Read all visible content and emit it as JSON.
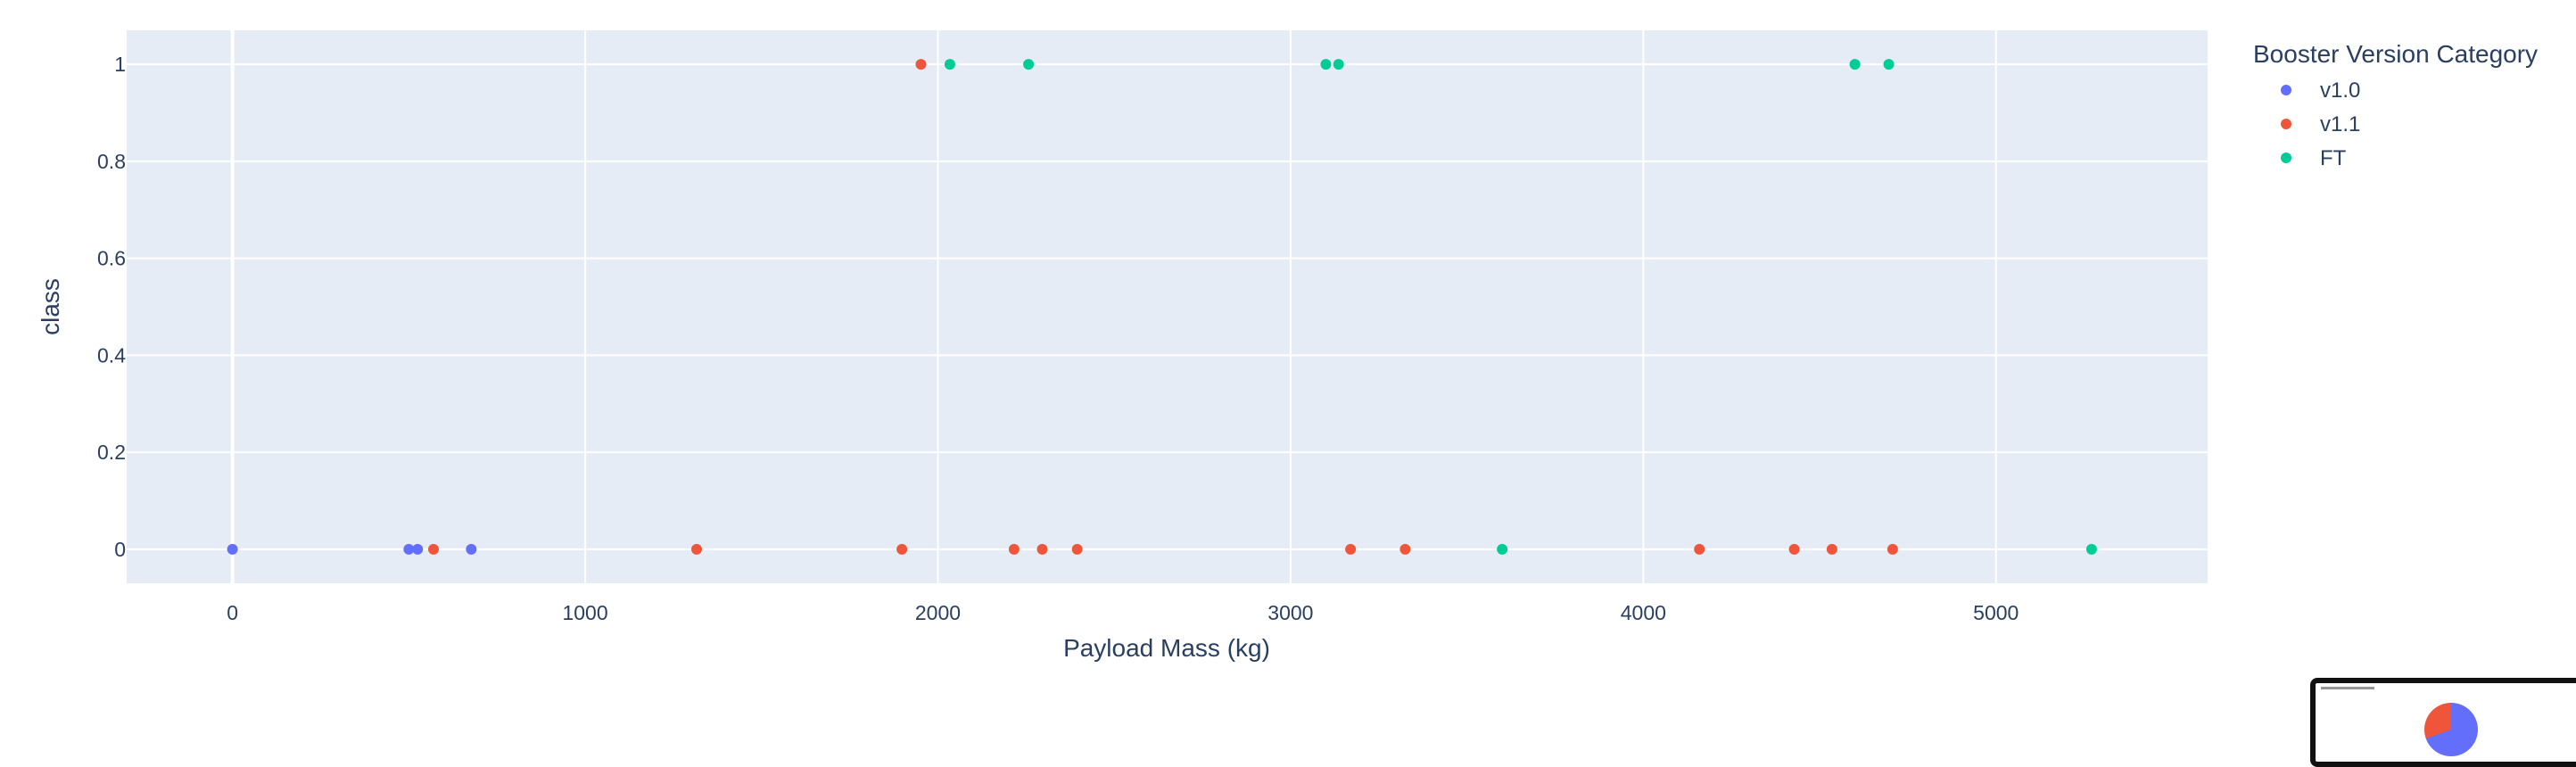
{
  "colors": {
    "plot_bg": "#e5ecf6",
    "grid": "#ffffff",
    "text": "#2a3f5f",
    "v1.0": "#636efa",
    "v1.1": "#ef553b",
    "FT": "#00cc96"
  },
  "chart_data": {
    "type": "scatter",
    "title": "",
    "xlabel": "Payload Mass (kg)",
    "ylabel": "class",
    "xlim": [
      -300,
      5600
    ],
    "ylim": [
      -0.07,
      1.07
    ],
    "xticks": [
      0,
      1000,
      2000,
      3000,
      4000,
      5000
    ],
    "xtick_labels": [
      "0",
      "1000",
      "2000",
      "3000",
      "4000",
      "5000"
    ],
    "yticks": [
      0,
      0.2,
      0.4,
      0.6,
      0.8,
      1
    ],
    "ytick_labels": [
      "0",
      "0.2",
      "0.4",
      "0.6",
      "0.8",
      "1"
    ],
    "grid": true,
    "legend": {
      "title": "Booster Version Category",
      "placement": "right"
    },
    "series": [
      {
        "name": "v1.0",
        "color": "#636efa",
        "points": [
          {
            "x": 0,
            "y": 0
          },
          {
            "x": 500,
            "y": 0
          },
          {
            "x": 525,
            "y": 0
          },
          {
            "x": 677,
            "y": 0
          }
        ]
      },
      {
        "name": "v1.1",
        "color": "#ef553b",
        "points": [
          {
            "x": 570,
            "y": 0
          },
          {
            "x": 1316,
            "y": 0
          },
          {
            "x": 1898,
            "y": 0
          },
          {
            "x": 1952,
            "y": 1
          },
          {
            "x": 2216,
            "y": 0
          },
          {
            "x": 2296,
            "y": 0
          },
          {
            "x": 2395,
            "y": 0
          },
          {
            "x": 3170,
            "y": 0
          },
          {
            "x": 3325,
            "y": 0
          },
          {
            "x": 4159,
            "y": 0
          },
          {
            "x": 4428,
            "y": 0
          },
          {
            "x": 4535,
            "y": 0
          },
          {
            "x": 4707,
            "y": 0
          }
        ]
      },
      {
        "name": "FT",
        "color": "#00cc96",
        "points": [
          {
            "x": 2034,
            "y": 1
          },
          {
            "x": 2257,
            "y": 1
          },
          {
            "x": 3100,
            "y": 1
          },
          {
            "x": 3136,
            "y": 1
          },
          {
            "x": 3600,
            "y": 0
          },
          {
            "x": 4600,
            "y": 1
          },
          {
            "x": 4696,
            "y": 1
          },
          {
            "x": 5271,
            "y": 0
          }
        ]
      }
    ]
  }
}
